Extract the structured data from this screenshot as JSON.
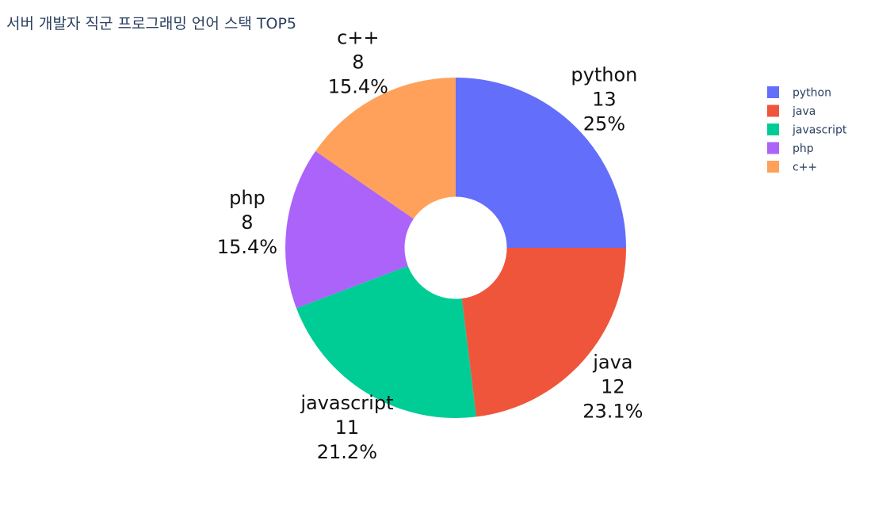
{
  "chart_data": {
    "type": "pie",
    "title": "서버 개발자 직군 프로그래밍 언어 스택 TOP5",
    "hole": 0.3,
    "legend_position": "top-right",
    "slices": [
      {
        "label": "python",
        "value": 13,
        "percent": "25%",
        "color": "#636efa"
      },
      {
        "label": "java",
        "value": 12,
        "percent": "23.1%",
        "color": "#ef553b"
      },
      {
        "label": "javascript",
        "value": 11,
        "percent": "21.2%",
        "color": "#00cc96"
      },
      {
        "label": "php",
        "value": 8,
        "percent": "15.4%",
        "color": "#ab63fa"
      },
      {
        "label": "c++",
        "value": 8,
        "percent": "15.4%",
        "color": "#ffa15a"
      }
    ]
  }
}
